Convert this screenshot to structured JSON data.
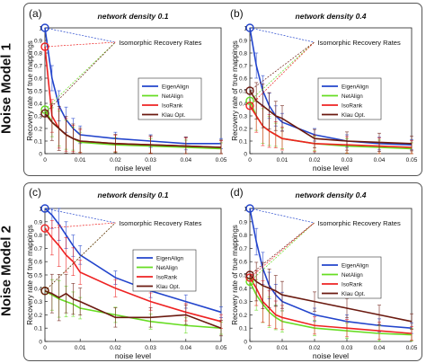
{
  "figure": {
    "groups": [
      {
        "label": "Noise Model 1"
      },
      {
        "label": "Noise Model 2"
      }
    ],
    "xlabel": "noise level",
    "ylabel": "Recovery rate of true mappings",
    "annotation": "Isomorphic Recovery Rates",
    "colors": {
      "EigenAlign": "#2244cc",
      "NetAlign": "#66dd22",
      "IsoRank": "#ee2222",
      "Klau Opt.": "#6b1a10"
    }
  },
  "chart_data": [
    {
      "type": "line",
      "panel_label": "(a)",
      "title": "network density 0.1",
      "xlabel": "noise level",
      "ylabel": "Recovery rate of true mappings",
      "xlim": [
        0,
        0.05
      ],
      "ylim": [
        0,
        1
      ],
      "xticks": [
        "0",
        "0.01",
        "0.02",
        "0.03",
        "0.04",
        "0.05"
      ],
      "yticks": [
        "0",
        "0.1",
        "0.2",
        "0.3",
        "0.4",
        "0.5",
        "0.6",
        "0.7",
        "0.8",
        "0.9",
        "1"
      ],
      "legend": [
        "EigenAlign",
        "NetAlign",
        "IsoRank",
        "Klau Opt."
      ],
      "legend_position": "right",
      "x": [
        0,
        0.002,
        0.004,
        0.006,
        0.008,
        0.01,
        0.02,
        0.03,
        0.04,
        0.05
      ],
      "series": [
        {
          "name": "EigenAlign",
          "values": [
            1.0,
            0.6,
            0.38,
            0.27,
            0.2,
            0.15,
            0.12,
            0.1,
            0.08,
            0.08
          ]
        },
        {
          "name": "NetAlign",
          "values": [
            0.35,
            0.25,
            0.2,
            0.15,
            0.12,
            0.09,
            0.07,
            0.06,
            0.05,
            0.04
          ]
        },
        {
          "name": "IsoRank",
          "values": [
            0.85,
            0.3,
            0.2,
            0.15,
            0.12,
            0.1,
            0.08,
            0.07,
            0.06,
            0.05
          ]
        },
        {
          "name": "Klau Opt.",
          "values": [
            0.32,
            0.25,
            0.2,
            0.15,
            0.12,
            0.1,
            0.08,
            0.07,
            0.06,
            0.05
          ]
        }
      ],
      "isomorphic_recovery": {
        "EigenAlign": 1.0,
        "NetAlign": 0.35,
        "IsoRank": 0.85,
        "Klau Opt.": 0.32
      }
    },
    {
      "type": "line",
      "panel_label": "(b)",
      "title": "network density 0.4",
      "xlabel": "noise level",
      "ylabel": "Recovery rate of true mappings",
      "xlim": [
        0,
        0.05
      ],
      "ylim": [
        0,
        1
      ],
      "xticks": [
        "0",
        "0.01",
        "0.02",
        "0.03",
        "0.04",
        "0.05"
      ],
      "yticks": [
        "0",
        "0.1",
        "0.2",
        "0.3",
        "0.4",
        "0.5",
        "0.6",
        "0.7",
        "0.8",
        "0.9",
        "1"
      ],
      "legend": [
        "EigenAlign",
        "NetAlign",
        "IsoRank",
        "Klau Opt."
      ],
      "legend_position": "right",
      "x": [
        0,
        0.002,
        0.004,
        0.006,
        0.008,
        0.01,
        0.02,
        0.03,
        0.04,
        0.05
      ],
      "series": [
        {
          "name": "EigenAlign",
          "values": [
            1.0,
            0.7,
            0.5,
            0.38,
            0.3,
            0.25,
            0.15,
            0.1,
            0.08,
            0.07
          ]
        },
        {
          "name": "NetAlign",
          "values": [
            0.42,
            0.3,
            0.22,
            0.18,
            0.15,
            0.12,
            0.08,
            0.06,
            0.05,
            0.04
          ]
        },
        {
          "name": "IsoRank",
          "values": [
            0.38,
            0.3,
            0.22,
            0.18,
            0.15,
            0.12,
            0.08,
            0.07,
            0.06,
            0.05
          ]
        },
        {
          "name": "Klau Opt.",
          "values": [
            0.5,
            0.42,
            0.38,
            0.34,
            0.3,
            0.28,
            0.12,
            0.1,
            0.09,
            0.08
          ]
        }
      ],
      "isomorphic_recovery": {
        "EigenAlign": 1.0,
        "NetAlign": 0.42,
        "IsoRank": 0.38,
        "Klau Opt.": 0.5
      }
    },
    {
      "type": "line",
      "panel_label": "(c)",
      "title": "network density 0.1",
      "xlabel": "noise level",
      "ylabel": "Recovery rate of true mappings",
      "xlim": [
        0,
        0.05
      ],
      "ylim": [
        0,
        1
      ],
      "xticks": [
        "0",
        "0.01",
        "0.02",
        "0.03",
        "0.04",
        "0.05"
      ],
      "yticks": [
        "0",
        "0.1",
        "0.2",
        "0.3",
        "0.4",
        "0.5",
        "0.6",
        "0.7",
        "0.8",
        "0.9",
        "1"
      ],
      "legend": [
        "EigenAlign",
        "NetAlign",
        "IsoRank",
        "Klau Opt."
      ],
      "legend_position": "right",
      "x": [
        0,
        0.002,
        0.004,
        0.006,
        0.008,
        0.01,
        0.02,
        0.03,
        0.04,
        0.05
      ],
      "series": [
        {
          "name": "EigenAlign",
          "values": [
            1.0,
            0.95,
            0.88,
            0.8,
            0.72,
            0.65,
            0.48,
            0.38,
            0.3,
            0.22
          ]
        },
        {
          "name": "NetAlign",
          "values": [
            0.38,
            0.35,
            0.32,
            0.3,
            0.28,
            0.25,
            0.2,
            0.15,
            0.12,
            0.1
          ]
        },
        {
          "name": "IsoRank",
          "values": [
            0.85,
            0.78,
            0.72,
            0.65,
            0.6,
            0.52,
            0.4,
            0.3,
            0.22,
            0.15
          ]
        },
        {
          "name": "Klau Opt.",
          "values": [
            0.38,
            0.36,
            0.33,
            0.36,
            0.32,
            0.3,
            0.18,
            0.18,
            0.2,
            0.1
          ]
        }
      ],
      "isomorphic_recovery": {
        "EigenAlign": 1.0,
        "NetAlign": 0.38,
        "IsoRank": 0.85,
        "Klau Opt.": 0.38
      }
    },
    {
      "type": "line",
      "panel_label": "(d)",
      "title": "network density 0.4",
      "xlabel": "noise level",
      "ylabel": "Recovery rate of true mappings",
      "xlim": [
        0,
        0.05
      ],
      "ylim": [
        0,
        1
      ],
      "xticks": [
        "0",
        "0.01",
        "0.02",
        "0.03",
        "0.04",
        "0.05"
      ],
      "yticks": [
        "0",
        "0.1",
        "0.2",
        "0.3",
        "0.4",
        "0.5",
        "0.6",
        "0.7",
        "0.8",
        "0.9",
        "1"
      ],
      "legend": [
        "EigenAlign",
        "NetAlign",
        "IsoRank",
        "Klau Opt."
      ],
      "legend_position": "right",
      "x": [
        0,
        0.002,
        0.004,
        0.006,
        0.008,
        0.01,
        0.02,
        0.03,
        0.04,
        0.05
      ],
      "series": [
        {
          "name": "EigenAlign",
          "values": [
            1.0,
            0.75,
            0.55,
            0.42,
            0.35,
            0.3,
            0.2,
            0.15,
            0.12,
            0.1
          ]
        },
        {
          "name": "NetAlign",
          "values": [
            0.45,
            0.35,
            0.28,
            0.22,
            0.18,
            0.15,
            0.1,
            0.08,
            0.06,
            0.05
          ]
        },
        {
          "name": "IsoRank",
          "values": [
            0.48,
            0.4,
            0.3,
            0.25,
            0.2,
            0.18,
            0.12,
            0.1,
            0.08,
            0.06
          ]
        },
        {
          "name": "Klau Opt.",
          "values": [
            0.5,
            0.45,
            0.42,
            0.4,
            0.38,
            0.35,
            0.3,
            0.25,
            0.2,
            0.15
          ]
        }
      ],
      "isomorphic_recovery": {
        "EigenAlign": 1.0,
        "NetAlign": 0.45,
        "IsoRank": 0.48,
        "Klau Opt.": 0.5
      }
    }
  ]
}
